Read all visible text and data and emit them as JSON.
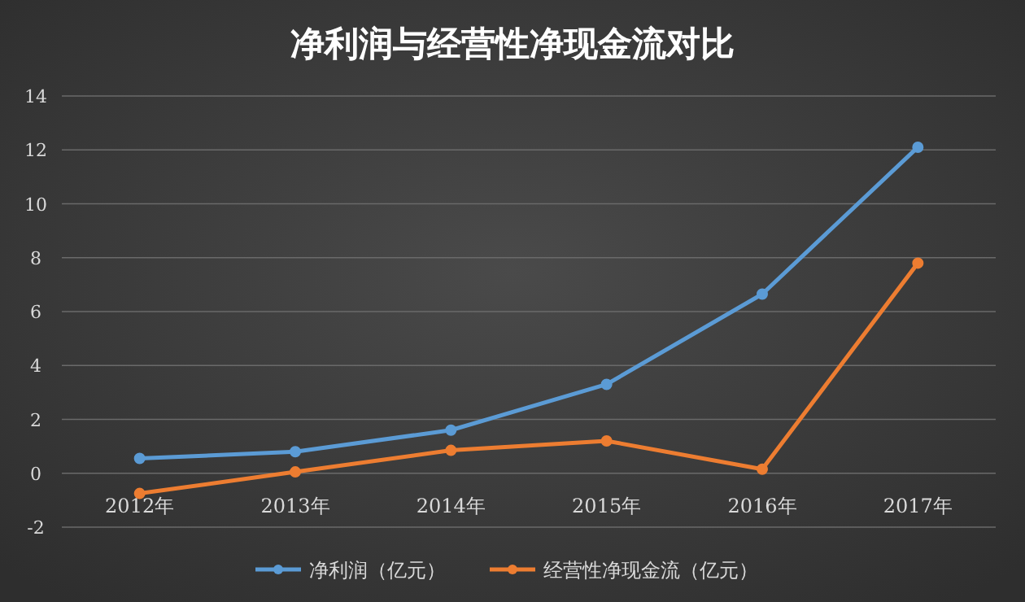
{
  "chart_data": {
    "type": "line",
    "title": "净利润与经营性净现金流对比",
    "categories": [
      "2012年",
      "2013年",
      "2014年",
      "2015年",
      "2016年",
      "2017年"
    ],
    "series": [
      {
        "name": "净利润（亿元）",
        "color": "#5b9bd5",
        "values": [
          0.55,
          0.8,
          1.6,
          3.3,
          6.65,
          12.1
        ]
      },
      {
        "name": "经营性净现金流（亿元）",
        "color": "#ed7d31",
        "values": [
          -0.75,
          0.05,
          0.85,
          1.2,
          0.15,
          7.8
        ]
      }
    ],
    "ylim": [
      -2,
      14
    ],
    "yticks": [
      -2,
      0,
      2,
      4,
      6,
      8,
      10,
      12,
      14
    ],
    "grid": "y",
    "legend": "bottom",
    "marker": "circle",
    "line_style": "solid"
  }
}
